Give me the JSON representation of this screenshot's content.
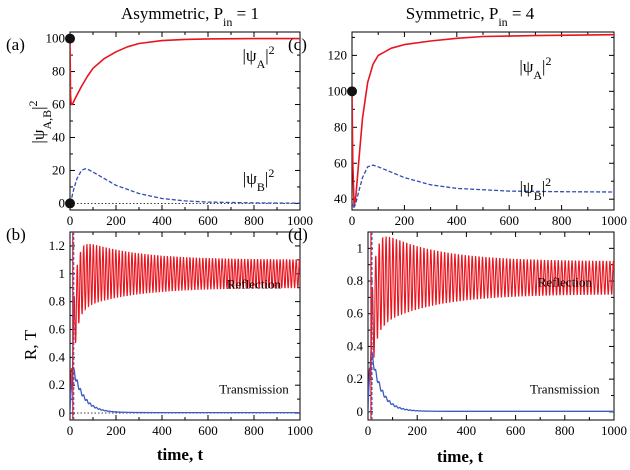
{
  "titles": {
    "left": {
      "text": "Asymmetric, P",
      "sub": "in",
      "rest": " = 1"
    },
    "right": {
      "text": "Symmetric, P",
      "sub": "in",
      "rest": " = 4"
    }
  },
  "shared_labels": {
    "top_ylabel": {
      "main": "|ψ",
      "sub": "A,B",
      "sup": "2"
    },
    "bottom_ylabel": "R, T",
    "xlabel": "time, t"
  },
  "colors": {
    "psiB": "#e8141e",
    "psiA": "#2e4fb0",
    "reflection": "#e8141e",
    "transmission": "#3a5cc4",
    "marker": "#111111"
  },
  "chart_data": [
    {
      "id": "a",
      "panel_label": "(a)",
      "type": "line",
      "xlim": [
        0,
        1000
      ],
      "ylim": [
        -4,
        104
      ],
      "xticks": [
        0,
        200,
        400,
        600,
        800,
        1000
      ],
      "yticks": [
        0,
        20,
        40,
        60,
        80,
        100
      ],
      "annotations": [
        {
          "main": "|ψ",
          "sub": "B",
          "sup": "2",
          "series": "psiB",
          "at": [
            0.82,
            0.82
          ]
        },
        {
          "main": "|ψ",
          "sub": "A",
          "sup": "2",
          "series": "psiA",
          "at": [
            0.82,
            0.13
          ]
        }
      ],
      "markers": [
        {
          "x": 0,
          "y": 100
        },
        {
          "x": 0,
          "y": 0
        }
      ],
      "series": [
        {
          "key": "psiB",
          "style": "solid",
          "x": [
            0,
            2,
            5,
            10,
            20,
            35,
            50,
            75,
            100,
            150,
            200,
            250,
            300,
            400,
            500,
            600,
            800,
            1000
          ],
          "y": [
            100,
            66,
            60,
            60,
            63,
            67,
            71,
            77,
            82,
            88,
            92,
            95,
            97,
            98.8,
            99.5,
            99.8,
            100,
            100
          ]
        },
        {
          "key": "psiA",
          "style": "dashed",
          "x": [
            0,
            5,
            15,
            30,
            50,
            65,
            80,
            100,
            150,
            200,
            300,
            400,
            500,
            600,
            800,
            1000
          ],
          "y": [
            0,
            2,
            8,
            15,
            20,
            21,
            20.5,
            19,
            15,
            11,
            6,
            3,
            1.5,
            0.8,
            0.3,
            0.1
          ]
        }
      ],
      "hline": 0
    },
    {
      "id": "c",
      "panel_label": "(c)",
      "type": "line",
      "xlim": [
        0,
        1000
      ],
      "ylim": [
        34,
        133
      ],
      "xticks": [
        0,
        200,
        400,
        600,
        800,
        1000
      ],
      "yticks": [
        40,
        60,
        80,
        100,
        120
      ],
      "annotations": [
        {
          "main": "|ψ",
          "sub": "B",
          "sup": "2",
          "series": "psiB",
          "at": [
            0.7,
            0.87
          ]
        },
        {
          "main": "|ψ",
          "sub": "A",
          "sup": "2",
          "series": "psiA",
          "at": [
            0.7,
            0.19
          ]
        }
      ],
      "markers": [
        {
          "x": 0,
          "y": 100
        }
      ],
      "series": [
        {
          "key": "psiB",
          "style": "solid",
          "x": [
            0,
            3,
            8,
            15,
            25,
            40,
            60,
            80,
            100,
            150,
            200,
            300,
            400,
            500,
            700,
            1000
          ],
          "y": [
            100,
            60,
            36,
            42,
            60,
            85,
            105,
            115,
            120,
            124,
            126,
            128,
            129.5,
            130.5,
            131,
            131.5
          ]
        },
        {
          "key": "psiA",
          "style": "dashed",
          "x": [
            0,
            5,
            10,
            15,
            25,
            40,
            60,
            80,
            100,
            150,
            200,
            300,
            400,
            600,
            800,
            1000
          ],
          "y": [
            38,
            35,
            36,
            38,
            44,
            52,
            58,
            59,
            58,
            55,
            52,
            48,
            46,
            44.5,
            44.2,
            44
          ]
        }
      ]
    },
    {
      "id": "b",
      "panel_label": "(b)",
      "type": "line",
      "xlim": [
        0,
        1000
      ],
      "ylim": [
        -0.05,
        1.3
      ],
      "xticks": [
        0,
        200,
        400,
        600,
        800,
        1000
      ],
      "yticks": [
        0,
        0.2,
        0.4,
        0.6,
        0.8,
        1,
        1.2
      ],
      "labels": [
        {
          "text": "Reflection",
          "at": [
            0.8,
            0.3
          ]
        },
        {
          "text": "Transmission",
          "at": [
            0.8,
            0.86
          ]
        }
      ],
      "oscillation": {
        "period": 14,
        "R_mean": 1.0,
        "R_amp_peak": 0.24,
        "R_amp_final": 0.1,
        "T_peak": 0.33,
        "T_decay": 45
      },
      "series": [
        {
          "key": "reflection",
          "name": "Reflection"
        },
        {
          "key": "transmission",
          "name": "Transmission"
        }
      ],
      "hline": 0
    },
    {
      "id": "d",
      "panel_label": "(d)",
      "type": "line",
      "xlim": [
        0,
        1000
      ],
      "ylim": [
        -0.05,
        1.1
      ],
      "xticks": [
        0,
        200,
        400,
        600,
        800,
        1000
      ],
      "yticks": [
        0,
        0.2,
        0.4,
        0.6,
        0.8,
        1
      ],
      "labels": [
        {
          "text": "Reflection",
          "at": [
            0.8,
            0.29
          ]
        },
        {
          "text": "Transmission",
          "at": [
            0.8,
            0.86
          ]
        }
      ],
      "oscillation": {
        "period": 14,
        "R_mean": 0.82,
        "R_amp_peak": 0.28,
        "R_amp_final": 0.1,
        "T_peak": 0.38,
        "T_decay": 40
      },
      "series": [
        {
          "key": "reflection",
          "name": "Reflection"
        },
        {
          "key": "transmission",
          "name": "Transmission"
        }
      ]
    }
  ]
}
